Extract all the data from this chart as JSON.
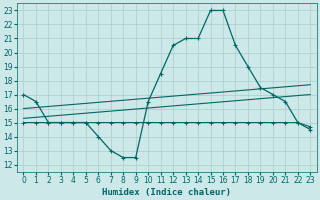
{
  "xlabel": "Humidex (Indice chaleur)",
  "bg_color": "#cce8e8",
  "grid_color": "#aacccc",
  "line_color": "#006666",
  "line1": {
    "x": [
      0,
      1,
      2,
      3,
      4,
      5,
      6,
      7,
      8,
      9,
      10,
      11,
      12,
      13,
      14,
      15,
      16,
      17,
      18,
      19,
      20,
      21,
      22,
      23
    ],
    "y": [
      17.0,
      16.5,
      15.0,
      15.0,
      15.0,
      15.0,
      14.0,
      13.0,
      12.5,
      12.5,
      16.5,
      18.5,
      20.5,
      21.0,
      21.0,
      23.0,
      23.0,
      20.5,
      19.0,
      17.5,
      17.0,
      16.5,
      15.0,
      14.5
    ]
  },
  "line2": {
    "x": [
      0,
      1,
      2,
      3,
      4,
      5,
      6,
      7,
      8,
      9,
      10,
      11,
      12,
      13,
      14,
      15,
      16,
      17,
      18,
      19,
      20,
      21,
      22,
      23
    ],
    "y": [
      15.0,
      15.0,
      15.0,
      15.0,
      15.0,
      15.0,
      15.0,
      15.0,
      15.0,
      15.0,
      15.0,
      15.0,
      15.0,
      15.0,
      15.0,
      15.0,
      15.0,
      15.0,
      15.0,
      15.0,
      15.0,
      15.0,
      15.0,
      14.7
    ]
  },
  "line3": {
    "x": [
      0,
      23
    ],
    "y": [
      15.3,
      17.0
    ]
  },
  "line4": {
    "x": [
      0,
      23
    ],
    "y": [
      16.0,
      17.7
    ]
  },
  "xlim": [
    -0.5,
    23.5
  ],
  "ylim": [
    11.5,
    23.5
  ],
  "xticks": [
    0,
    1,
    2,
    3,
    4,
    5,
    6,
    7,
    8,
    9,
    10,
    11,
    12,
    13,
    14,
    15,
    16,
    17,
    18,
    19,
    20,
    21,
    22,
    23
  ],
  "yticks": [
    12,
    13,
    14,
    15,
    16,
    17,
    18,
    19,
    20,
    21,
    22,
    23
  ],
  "tick_fontsize": 5.5,
  "label_fontsize": 6.5
}
